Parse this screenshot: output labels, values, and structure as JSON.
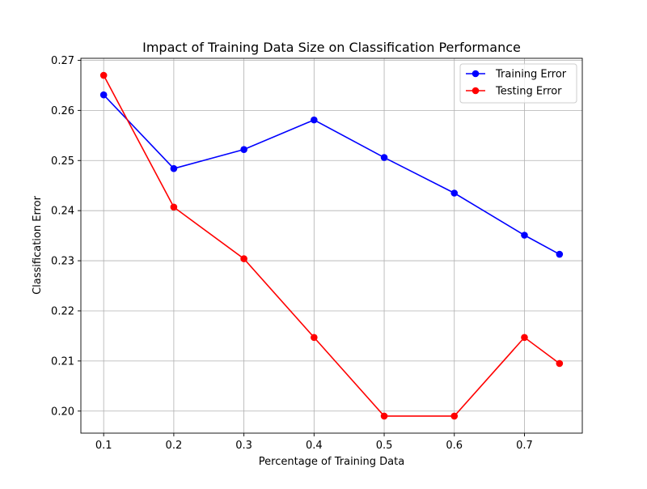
{
  "chart_data": {
    "type": "line",
    "title": "Impact of Training Data Size on Classification Performance",
    "xlabel": "Percentage of Training Data",
    "ylabel": "Classification Error",
    "x": [
      0.1,
      0.2,
      0.3,
      0.4,
      0.5,
      0.6,
      0.7,
      0.75
    ],
    "series": [
      {
        "name": "Training Error",
        "color": "#0000ff",
        "marker": "circle",
        "values": [
          0.2631,
          0.2484,
          0.2522,
          0.2581,
          0.2506,
          0.2435,
          0.2351,
          0.2313
        ]
      },
      {
        "name": "Testing Error",
        "color": "#ff0000",
        "marker": "circle",
        "values": [
          0.267,
          0.2407,
          0.2304,
          0.2147,
          0.199,
          0.199,
          0.2147,
          0.2095
        ]
      }
    ],
    "xlim": [
      0.0675,
      0.7825
    ],
    "ylim": [
      0.1956,
      0.2704
    ],
    "xticks": [
      0.1,
      0.2,
      0.3,
      0.4,
      0.5,
      0.6,
      0.7
    ],
    "xtick_labels": [
      "0.1",
      "0.2",
      "0.3",
      "0.4",
      "0.5",
      "0.6",
      "0.7"
    ],
    "yticks": [
      0.2,
      0.21,
      0.22,
      0.23,
      0.24,
      0.25,
      0.26,
      0.27
    ],
    "ytick_labels": [
      "0.20",
      "0.21",
      "0.22",
      "0.23",
      "0.24",
      "0.25",
      "0.26",
      "0.27"
    ],
    "grid": true,
    "legend_position": "top-right"
  }
}
